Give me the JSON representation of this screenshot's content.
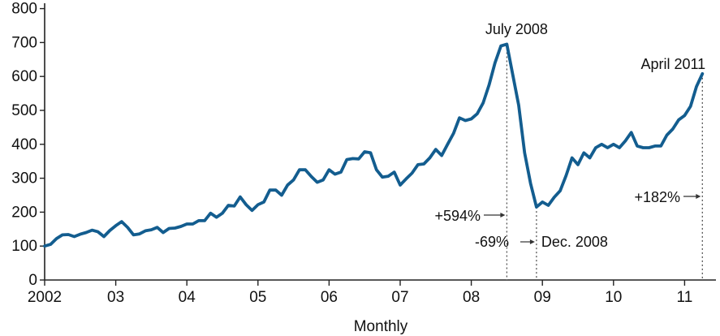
{
  "chart_data": {
    "type": "line",
    "title": "",
    "xlabel": "Monthly",
    "ylabel": "",
    "ylim": [
      0,
      800
    ],
    "yticks": [
      "0",
      "100",
      "200",
      "300",
      "400",
      "500",
      "600",
      "700",
      "800"
    ],
    "xticks": [
      "2002",
      "03",
      "04",
      "05",
      "06",
      "07",
      "08",
      "09",
      "10",
      "11"
    ],
    "grid": false,
    "line_color": "#135d8f",
    "series": [
      {
        "name": "",
        "x_start": "2002-01",
        "x_end": "2011-04",
        "frequency": "monthly",
        "values": [
          100,
          105,
          122,
          133,
          134,
          128,
          135,
          140,
          147,
          142,
          128,
          146,
          160,
          172,
          155,
          133,
          136,
          145,
          148,
          155,
          140,
          152,
          153,
          158,
          165,
          165,
          175,
          175,
          197,
          185,
          197,
          220,
          218,
          245,
          222,
          205,
          222,
          230,
          265,
          265,
          250,
          280,
          295,
          325,
          325,
          305,
          288,
          295,
          325,
          312,
          318,
          355,
          358,
          357,
          378,
          375,
          325,
          303,
          306,
          318,
          280,
          298,
          315,
          340,
          342,
          360,
          385,
          367,
          400,
          432,
          478,
          470,
          475,
          490,
          522,
          575,
          640,
          690,
          695,
          605,
          515,
          375,
          285,
          215,
          230,
          220,
          244,
          263,
          308,
          360,
          340,
          375,
          360,
          390,
          400,
          390,
          400,
          390,
          410,
          435,
          395,
          390,
          390,
          395,
          395,
          427,
          445,
          472,
          485,
          512,
          570,
          608
        ]
      }
    ],
    "annotations": [
      {
        "text": "July 2008",
        "date": "2008-07",
        "value": 695
      },
      {
        "text": "Dec. 2008",
        "date": "2008-12",
        "value": 215
      },
      {
        "text": "April 2011",
        "date": "2011-04",
        "value": 608
      },
      {
        "text": "+594%",
        "date": "2008-07"
      },
      {
        "text": "-69%",
        "date": "2008-12"
      },
      {
        "text": "+182%",
        "date": "2011-04"
      }
    ]
  }
}
